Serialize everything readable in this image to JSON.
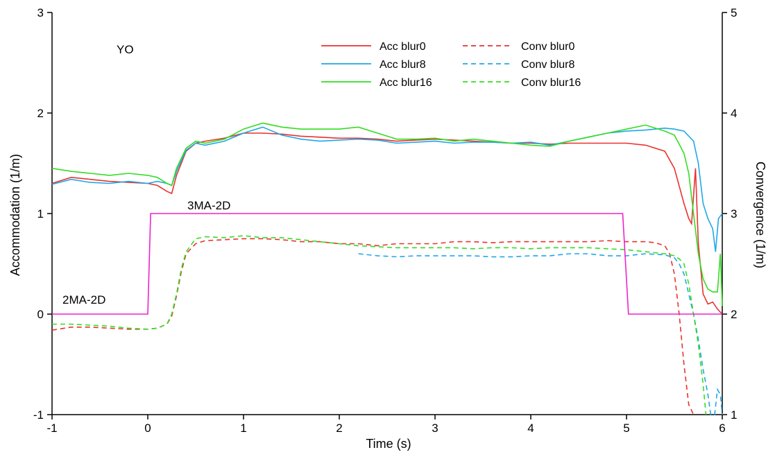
{
  "chart_data": {
    "type": "line",
    "subject_label": "YO",
    "xlabel": "Time (s)",
    "ylabel_left": "Accommodation (1/m)",
    "ylabel_right": "Convergence (1/m)",
    "xlim": [
      -1,
      6
    ],
    "ylim_left": [
      -1,
      3
    ],
    "ylim_right": [
      1,
      5
    ],
    "x_ticks": [
      "-1",
      "0",
      "1",
      "2",
      "3",
      "4",
      "5",
      "6"
    ],
    "y_left_ticks": [
      "-1",
      "0",
      "1",
      "2",
      "3"
    ],
    "y_right_ticks": [
      "1",
      "2",
      "3",
      "4",
      "5"
    ],
    "grid": false,
    "legend_position": "top-center",
    "annotations": [
      {
        "text": "3MA-2D",
        "x": 0.95,
        "y": 1.05
      },
      {
        "text": "2MA-2D",
        "x": -0.55,
        "y": 0.08
      }
    ],
    "series": [
      {
        "name": "Acc blur0",
        "axis": "left",
        "style": "solid",
        "color": "#e8322f",
        "x": [
          -1.0,
          -0.8,
          -0.6,
          -0.4,
          -0.2,
          0.0,
          0.1,
          0.2,
          0.25,
          0.3,
          0.4,
          0.5,
          0.6,
          0.8,
          1.0,
          1.2,
          1.4,
          1.6,
          1.8,
          2.0,
          2.2,
          2.4,
          2.6,
          2.8,
          3.0,
          3.2,
          3.4,
          3.6,
          3.8,
          4.0,
          4.2,
          4.4,
          4.6,
          4.8,
          5.0,
          5.2,
          5.4,
          5.5,
          5.6,
          5.65,
          5.68,
          5.72,
          5.75,
          5.8,
          5.85,
          5.9,
          5.95,
          6.0
        ],
        "y": [
          1.3,
          1.36,
          1.34,
          1.32,
          1.31,
          1.3,
          1.28,
          1.22,
          1.2,
          1.38,
          1.62,
          1.7,
          1.72,
          1.75,
          1.8,
          1.8,
          1.79,
          1.77,
          1.76,
          1.75,
          1.75,
          1.74,
          1.72,
          1.73,
          1.74,
          1.73,
          1.72,
          1.71,
          1.7,
          1.7,
          1.69,
          1.7,
          1.7,
          1.7,
          1.7,
          1.68,
          1.62,
          1.45,
          1.1,
          0.95,
          0.9,
          1.45,
          0.7,
          0.2,
          0.1,
          0.12,
          0.05,
          0.0
        ]
      },
      {
        "name": "Acc blur8",
        "axis": "left",
        "style": "solid",
        "color": "#1ea7e8",
        "x": [
          -1.0,
          -0.8,
          -0.6,
          -0.4,
          -0.2,
          0.0,
          0.1,
          0.2,
          0.25,
          0.3,
          0.4,
          0.5,
          0.6,
          0.8,
          1.0,
          1.2,
          1.4,
          1.6,
          1.8,
          2.0,
          2.2,
          2.4,
          2.6,
          2.8,
          3.0,
          3.2,
          3.4,
          3.6,
          3.8,
          4.0,
          4.2,
          4.4,
          4.6,
          4.8,
          5.0,
          5.2,
          5.4,
          5.5,
          5.6,
          5.7,
          5.75,
          5.8,
          5.85,
          5.9,
          5.93,
          5.96,
          6.0
        ],
        "y": [
          1.29,
          1.34,
          1.31,
          1.3,
          1.32,
          1.3,
          1.32,
          1.3,
          1.28,
          1.42,
          1.63,
          1.7,
          1.68,
          1.72,
          1.8,
          1.86,
          1.78,
          1.74,
          1.72,
          1.73,
          1.74,
          1.73,
          1.7,
          1.71,
          1.72,
          1.7,
          1.71,
          1.71,
          1.7,
          1.71,
          1.68,
          1.72,
          1.76,
          1.8,
          1.82,
          1.83,
          1.85,
          1.84,
          1.82,
          1.72,
          1.5,
          1.1,
          0.95,
          0.85,
          0.62,
          0.95,
          1.0
        ]
      },
      {
        "name": "Acc blur16",
        "axis": "left",
        "style": "solid",
        "color": "#33dd22",
        "x": [
          -1.0,
          -0.8,
          -0.6,
          -0.4,
          -0.2,
          0.0,
          0.1,
          0.2,
          0.25,
          0.3,
          0.4,
          0.5,
          0.6,
          0.8,
          1.0,
          1.2,
          1.4,
          1.6,
          1.8,
          2.0,
          2.2,
          2.4,
          2.6,
          2.8,
          3.0,
          3.2,
          3.4,
          3.6,
          3.8,
          4.0,
          4.2,
          4.4,
          4.6,
          4.8,
          5.0,
          5.2,
          5.4,
          5.5,
          5.6,
          5.65,
          5.7,
          5.75,
          5.8,
          5.85,
          5.9,
          5.95,
          5.98,
          6.0
        ],
        "y": [
          1.45,
          1.42,
          1.4,
          1.38,
          1.4,
          1.38,
          1.36,
          1.3,
          1.28,
          1.45,
          1.65,
          1.72,
          1.7,
          1.74,
          1.84,
          1.9,
          1.86,
          1.84,
          1.84,
          1.84,
          1.86,
          1.8,
          1.74,
          1.74,
          1.75,
          1.72,
          1.74,
          1.72,
          1.7,
          1.68,
          1.67,
          1.72,
          1.76,
          1.8,
          1.84,
          1.88,
          1.82,
          1.78,
          1.6,
          1.4,
          1.0,
          0.6,
          0.35,
          0.25,
          0.22,
          0.22,
          0.6,
          0.08
        ]
      },
      {
        "name": "Conv blur0",
        "axis": "right",
        "style": "dashed",
        "color": "#e8322f",
        "x": [
          -1.0,
          -0.8,
          -0.6,
          -0.4,
          -0.2,
          0.0,
          0.1,
          0.2,
          0.25,
          0.3,
          0.35,
          0.4,
          0.5,
          0.6,
          0.8,
          1.0,
          1.2,
          1.4,
          1.6,
          1.8,
          2.0,
          2.2,
          2.4,
          2.6,
          2.8,
          3.0,
          3.2,
          3.4,
          3.6,
          3.8,
          4.0,
          4.2,
          4.4,
          4.6,
          4.8,
          5.0,
          5.2,
          5.3,
          5.4,
          5.45,
          5.5,
          5.55,
          5.6,
          5.65,
          5.7
        ],
        "y": [
          1.84,
          1.87,
          1.87,
          1.86,
          1.85,
          1.85,
          1.86,
          1.9,
          1.98,
          2.18,
          2.42,
          2.6,
          2.7,
          2.73,
          2.74,
          2.75,
          2.75,
          2.74,
          2.72,
          2.72,
          2.7,
          2.7,
          2.68,
          2.7,
          2.7,
          2.7,
          2.72,
          2.72,
          2.71,
          2.72,
          2.72,
          2.72,
          2.72,
          2.72,
          2.73,
          2.72,
          2.72,
          2.71,
          2.68,
          2.6,
          2.4,
          2.0,
          1.5,
          1.1,
          0.95
        ]
      },
      {
        "name": "Conv blur8",
        "axis": "right",
        "style": "dashed",
        "color": "#1ea7e8",
        "x": [
          2.2,
          2.4,
          2.6,
          2.8,
          3.0,
          3.2,
          3.4,
          3.6,
          3.8,
          4.0,
          4.2,
          4.4,
          4.6,
          4.8,
          5.0,
          5.2,
          5.4,
          5.5,
          5.55,
          5.6,
          5.65,
          5.7,
          5.75,
          5.8,
          5.85,
          5.88,
          5.92,
          5.95,
          5.98,
          6.0
        ],
        "y": [
          2.6,
          2.58,
          2.57,
          2.58,
          2.58,
          2.58,
          2.58,
          2.57,
          2.57,
          2.58,
          2.58,
          2.6,
          2.6,
          2.58,
          2.58,
          2.6,
          2.59,
          2.56,
          2.5,
          2.4,
          2.2,
          2.0,
          1.75,
          1.45,
          1.2,
          0.95,
          1.0,
          1.25,
          1.2,
          1.0
        ]
      },
      {
        "name": "Conv blur16",
        "axis": "right",
        "style": "dashed",
        "color": "#33dd22",
        "x": [
          -1.0,
          -0.8,
          -0.6,
          -0.4,
          -0.2,
          0.0,
          0.1,
          0.2,
          0.25,
          0.3,
          0.35,
          0.4,
          0.5,
          0.6,
          0.8,
          1.0,
          1.2,
          1.4,
          1.6,
          1.8,
          2.0,
          2.2,
          2.4,
          2.6,
          2.8,
          3.0,
          3.2,
          3.4,
          3.6,
          3.8,
          4.0,
          4.2,
          4.4,
          4.6,
          4.8,
          5.0,
          5.2,
          5.4,
          5.5,
          5.55,
          5.6,
          5.65,
          5.7,
          5.75,
          5.8,
          5.83
        ],
        "y": [
          1.9,
          1.9,
          1.89,
          1.88,
          1.86,
          1.85,
          1.86,
          1.9,
          2.0,
          2.2,
          2.45,
          2.62,
          2.75,
          2.77,
          2.76,
          2.78,
          2.76,
          2.76,
          2.74,
          2.72,
          2.7,
          2.68,
          2.67,
          2.66,
          2.66,
          2.66,
          2.66,
          2.65,
          2.66,
          2.66,
          2.65,
          2.66,
          2.66,
          2.66,
          2.65,
          2.64,
          2.62,
          2.6,
          2.58,
          2.55,
          2.5,
          2.3,
          2.0,
          1.7,
          1.3,
          1.0
        ]
      },
      {
        "name": "",
        "axis": "left",
        "style": "solid",
        "color": "#ee22cc",
        "x": [
          -1.0,
          0.0,
          0.03,
          4.96,
          5.02,
          6.0
        ],
        "y": [
          0.0,
          0.0,
          1.0,
          1.0,
          0.0,
          0.0
        ]
      }
    ]
  }
}
